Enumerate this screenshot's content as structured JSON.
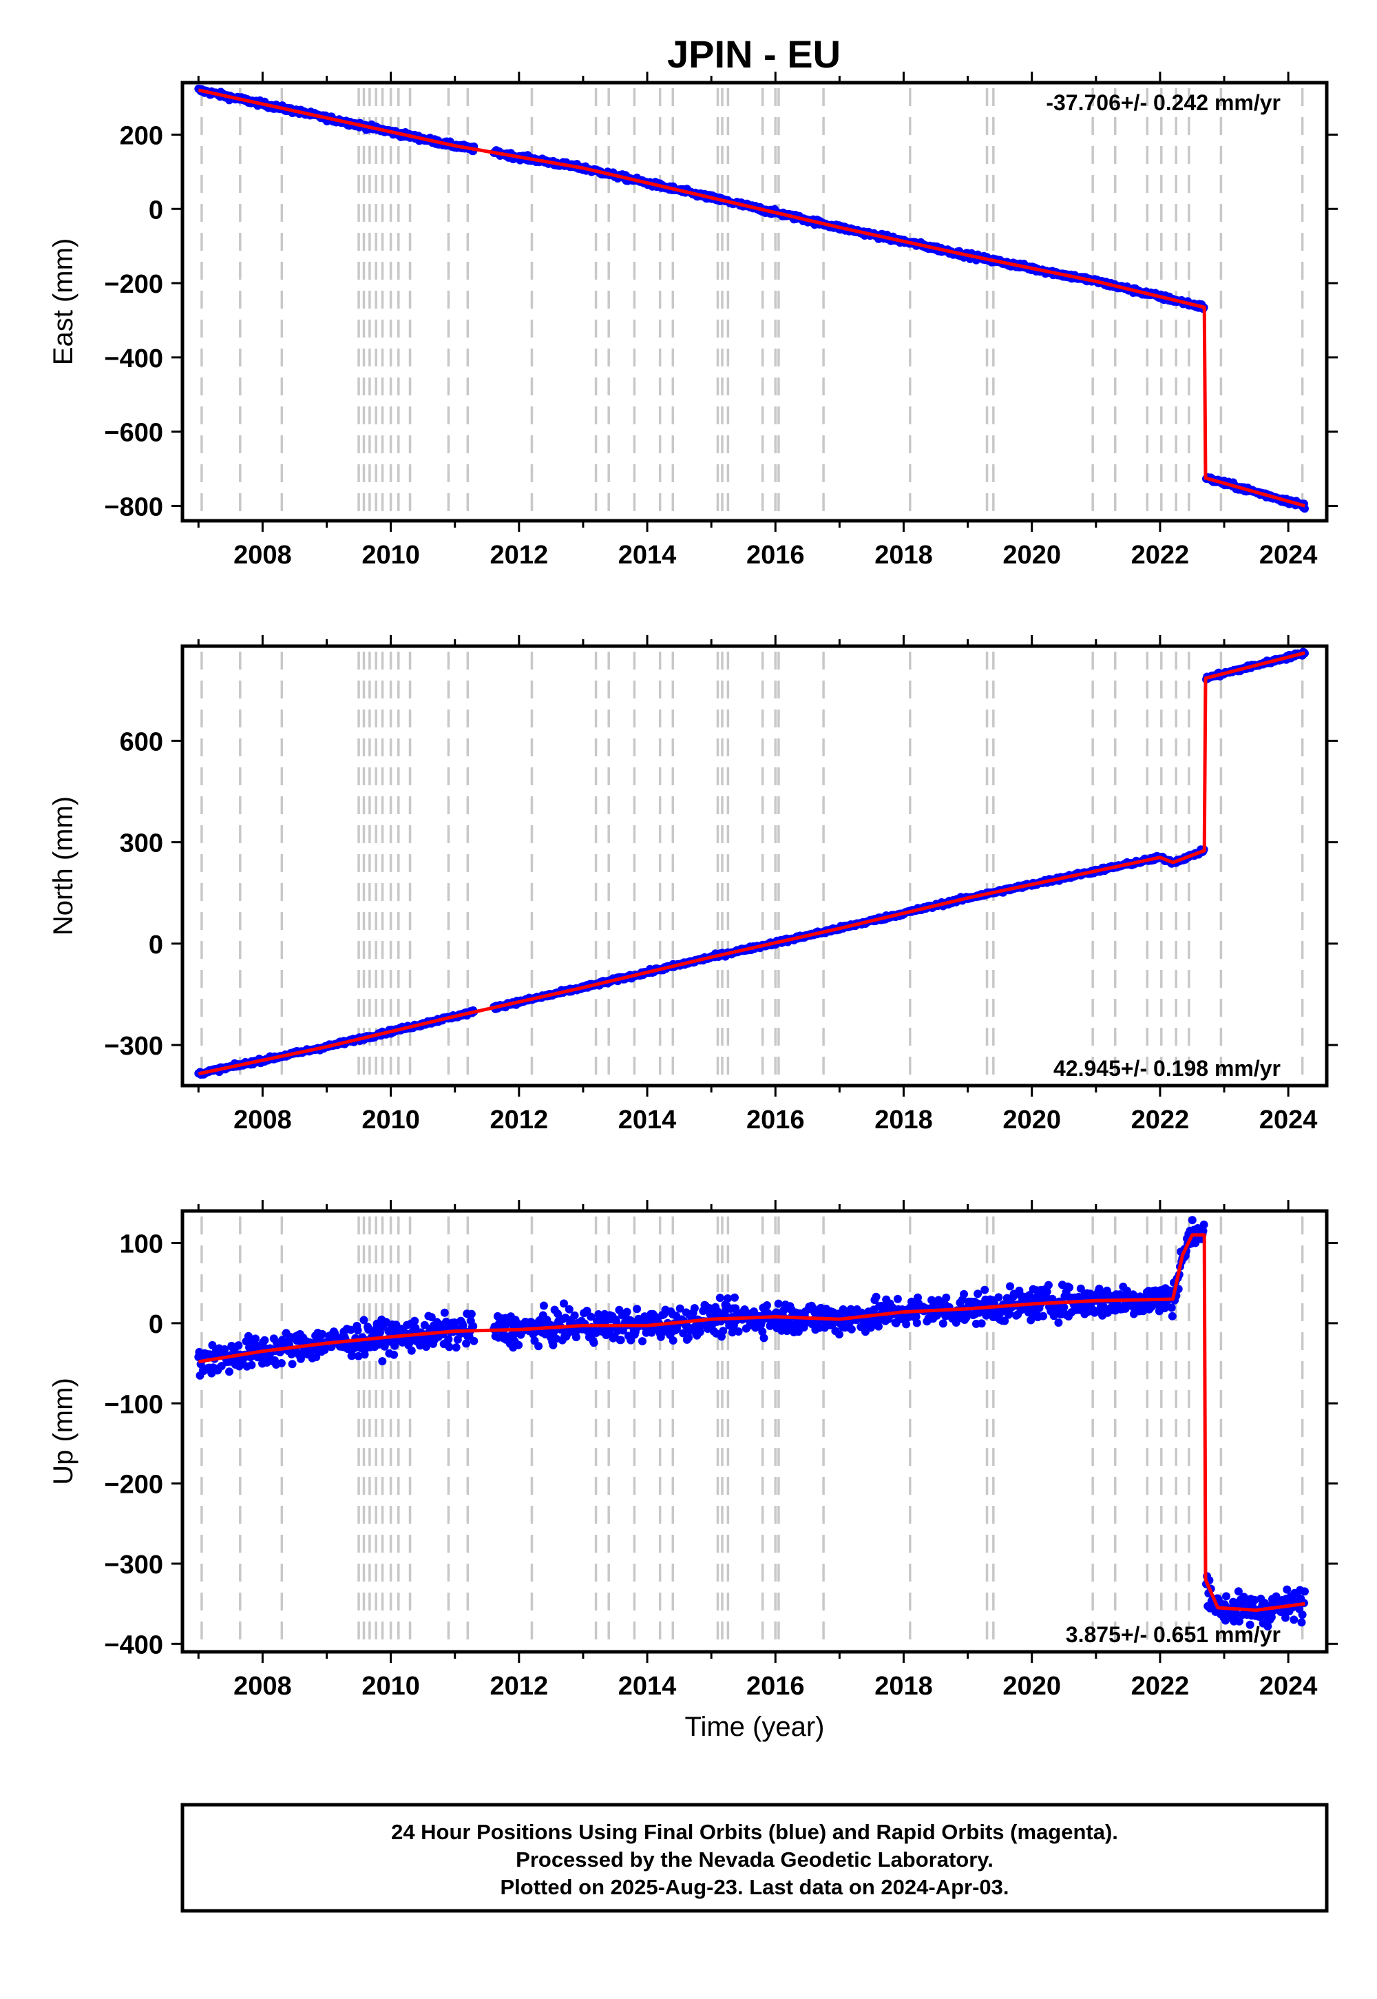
{
  "title": "JPIN - EU",
  "footer": {
    "lines": [
      "24 Hour Positions Using Final Orbits (blue) and Rapid Orbits (magenta).",
      "Processed by the Nevada Geodetic Laboratory.",
      "Plotted on 2025-Aug-23. Last data on 2024-Apr-03."
    ]
  },
  "colors": {
    "final_points": "#0000ff",
    "model_line": "#ff0000",
    "event_lines": "#c8c8c8",
    "frame": "#000000"
  },
  "chart_data": [
    {
      "type": "scatter",
      "name": "east",
      "ylabel": "East (mm)",
      "xlabel": "",
      "xlim": [
        2006.75,
        2024.6
      ],
      "ylim": [
        -840,
        340
      ],
      "x_ticks": [
        2008,
        2010,
        2012,
        2014,
        2016,
        2018,
        2020,
        2022,
        2024
      ],
      "y_ticks": [
        200,
        0,
        -200,
        -400,
        -600,
        -800
      ],
      "rate_label": "-37.706+/- 0.242 mm/yr",
      "rate_position": "top-right",
      "noise_mm": 5,
      "data_gap": [
        2011.3,
        2011.6
      ],
      "offsets": [
        {
          "year": 2022.7,
          "step": -460
        }
      ],
      "series": [
        {
          "name": "",
          "x": [
            2007.0,
            2009.0,
            2011.0,
            2013.0,
            2015.0,
            2017.0,
            2019.0,
            2021.0,
            2022.69,
            2022.71,
            2024.26
          ],
          "y": [
            320,
            245,
            170,
            110,
            30,
            -50,
            -125,
            -195,
            -265,
            -725,
            -800
          ]
        }
      ]
    },
    {
      "type": "scatter",
      "name": "north",
      "ylabel": "North (mm)",
      "xlabel": "",
      "xlim": [
        2006.75,
        2024.6
      ],
      "ylim": [
        -420,
        880
      ],
      "x_ticks": [
        2008,
        2010,
        2012,
        2014,
        2016,
        2018,
        2020,
        2022,
        2024
      ],
      "y_ticks": [
        600,
        300,
        0,
        -300
      ],
      "rate_label": "42.945+/- 0.198 mm/yr",
      "rate_position": "bottom-right",
      "noise_mm": 4,
      "data_gap": [
        2011.3,
        2011.6
      ],
      "offsets": [
        {
          "year": 2022.7,
          "step": 510
        }
      ],
      "series": [
        {
          "name": "",
          "x": [
            2007.0,
            2009.0,
            2011.0,
            2013.0,
            2015.0,
            2017.0,
            2019.0,
            2021.0,
            2022.0,
            2022.2,
            2022.69,
            2022.71,
            2024.26
          ],
          "y": [
            -385,
            -305,
            -215,
            -130,
            -40,
            45,
            135,
            215,
            255,
            240,
            275,
            785,
            860
          ]
        }
      ]
    },
    {
      "type": "scatter",
      "name": "up",
      "ylabel": "Up (mm)",
      "xlabel": "Time (year)",
      "xlim": [
        2006.75,
        2024.6
      ],
      "ylim": [
        -410,
        140
      ],
      "x_ticks": [
        2008,
        2010,
        2012,
        2014,
        2016,
        2018,
        2020,
        2022,
        2024
      ],
      "y_ticks": [
        100,
        0,
        -100,
        -200,
        -300,
        -400
      ],
      "rate_label": "3.875+/- 0.651 mm/yr",
      "rate_position": "bottom-right",
      "noise_mm": 14,
      "data_gap": [
        2011.3,
        2011.6
      ],
      "offsets": [
        {
          "year": 2022.7,
          "step": -420
        }
      ],
      "series": [
        {
          "name": "",
          "x": [
            2007.0,
            2008.0,
            2009.0,
            2010.0,
            2011.0,
            2012.0,
            2013.0,
            2014.0,
            2015.0,
            2016.0,
            2017.0,
            2018.0,
            2019.0,
            2020.0,
            2021.0,
            2022.2,
            2022.35,
            2022.5,
            2022.69,
            2022.71,
            2022.9,
            2023.5,
            2024.26
          ],
          "y": [
            -48,
            -35,
            -25,
            -17,
            -10,
            -8,
            -3,
            -3,
            5,
            8,
            5,
            14,
            18,
            24,
            28,
            30,
            85,
            110,
            110,
            -320,
            -355,
            -358,
            -350
          ]
        }
      ]
    }
  ],
  "event_lines": [
    2007.05,
    2007.65,
    2008.3,
    2009.5,
    2009.58,
    2009.67,
    2009.77,
    2009.87,
    2010.0,
    2010.12,
    2010.3,
    2010.9,
    2011.2,
    2012.2,
    2013.2,
    2013.4,
    2013.8,
    2014.2,
    2014.4,
    2015.1,
    2015.17,
    2015.26,
    2015.8,
    2016.0,
    2016.05,
    2016.75,
    2018.1,
    2019.3,
    2019.4,
    2020.95,
    2021.3,
    2021.8,
    2022.02,
    2022.25,
    2022.45,
    2022.95,
    2024.22
  ]
}
